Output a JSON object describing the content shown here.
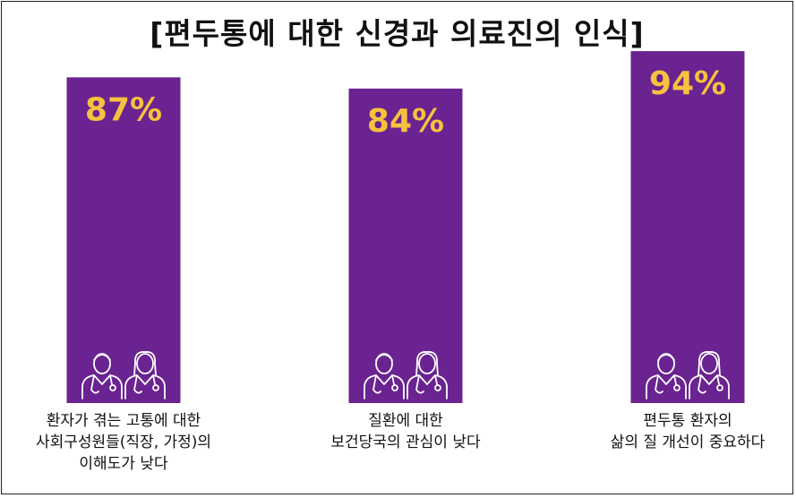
{
  "chart_data": {
    "type": "bar",
    "title": "[편두통에 대한 신경과 의료진의 인식]",
    "categories": [
      [
        "환자가 겪는 고통에 대한",
        "사회구성원들(직장, 가정)의",
        "이해도가 낮다"
      ],
      [
        "질환에 대한",
        "보건당국의 관심이 낮다"
      ],
      [
        "편두통 환자의",
        "삶의 질 개선이 중요하다"
      ]
    ],
    "values": [
      87,
      84,
      94
    ],
    "value_labels": [
      "87%",
      "84%",
      "94%"
    ],
    "ylim": [
      0,
      100
    ],
    "grid": false,
    "legend": "none",
    "bar_color": "#6a2390",
    "value_label_color": "#f6c23e",
    "icon": "doctors-icon"
  }
}
